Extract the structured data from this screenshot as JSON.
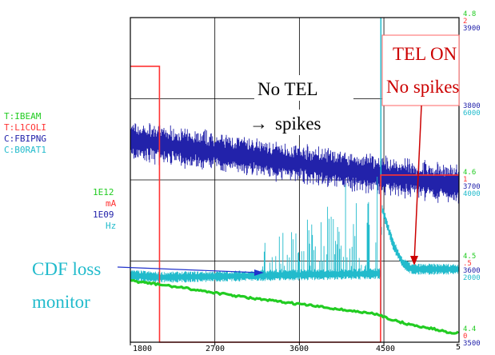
{
  "chart_data": {
    "type": "line",
    "x_ticks": [
      "1800",
      "2700",
      "3600",
      "4500",
      "5"
    ],
    "x_range": [
      1800,
      5300
    ],
    "legend": {
      "names": [
        "T:IBEAM",
        "T:L1COLI",
        "C:FBIPNG",
        "C:B0RAT1"
      ],
      "units": [
        "1E12",
        "mA",
        "1E09",
        "Hz"
      ]
    },
    "right_axis": {
      "top": [
        "4.8",
        "2",
        "3900"
      ],
      "r3800": [
        "3800",
        "6000"
      ],
      "r3700": [
        "4.6",
        "1",
        "3700",
        "4000"
      ],
      "r3600": [
        "4.5",
        ".5",
        "3600",
        "2000"
      ],
      "r3500": [
        "4.4",
        "0",
        "3500"
      ]
    },
    "series": [
      {
        "name": "T:IBEAM",
        "x": [
          1800,
          2300,
          2700,
          3100,
          3600,
          4000,
          4450,
          4600,
          4800,
          5000,
          5200
        ],
        "y": [
          4.476,
          4.468,
          4.461,
          4.454,
          4.447,
          4.441,
          4.434,
          4.427,
          4.421,
          4.417,
          4.412
        ]
      },
      {
        "name": "T:L1COLI",
        "x": [
          1800,
          2110,
          2111,
          4465,
          4466,
          5300
        ],
        "y": [
          1.7,
          1.7,
          0.0,
          0.0,
          1.03,
          1.03
        ]
      },
      {
        "name": "C:FBIPNG",
        "x": [
          1800,
          4465,
          5300
        ],
        "y": [
          3749,
          3706,
          3694
        ]
      },
      {
        "name": "C:B0RAT1",
        "x": [
          1800,
          2110,
          2700,
          3600,
          4465,
          4480,
          4600,
          4700,
          4800,
          5300
        ],
        "y": [
          1650,
          1600,
          1620,
          1660,
          1690,
          3300,
          2400,
          1950,
          1800,
          1800
        ]
      }
    ],
    "annotations": {
      "no_tel_line1": "No TEL",
      "no_tel_line2": "spikes",
      "no_tel_arrow": "→",
      "tel_on_line1": "TEL ON",
      "tel_on_line2": "No spikes",
      "cdf_line1": "CDF loss",
      "cdf_line2": "monitor"
    },
    "grid": true,
    "colors": {
      "ibeam": "#22cc22",
      "l1coli": "#ff3333",
      "fbipng": "#2222aa",
      "b0rat1": "#22bbcc",
      "annotation_red": "#cc0000",
      "annotation_cyan": "#22bbcc"
    }
  }
}
